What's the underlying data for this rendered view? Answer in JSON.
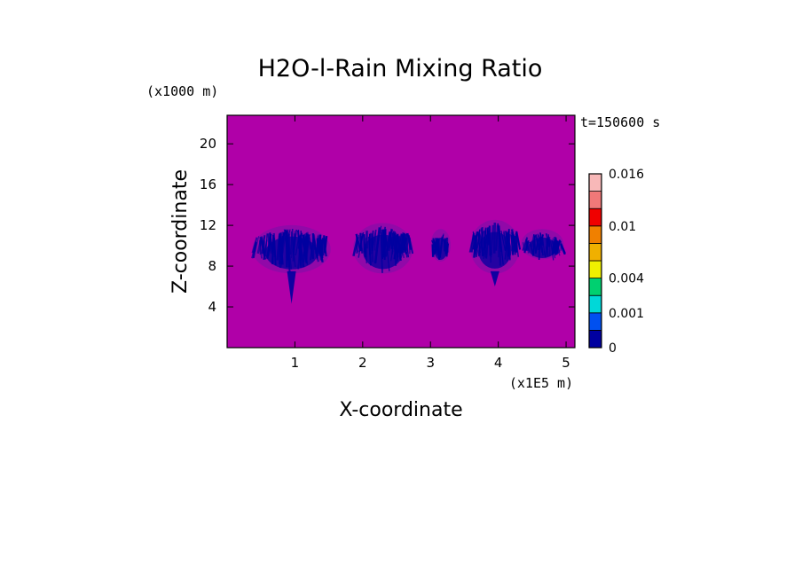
{
  "chart_data": {
    "type": "heatmap",
    "title": "H2O-l-Rain Mixing Ratio",
    "xlabel": "X-coordinate",
    "ylabel": "Z-coordinate",
    "x_unit": "(x1E5 m)",
    "y_unit": "(x1000 m)",
    "time_label": "t=150600 s",
    "xlim": [
      0,
      5.13
    ],
    "ylim": [
      0,
      22.8
    ],
    "x_ticks": [
      {
        "value": 1,
        "label": "1"
      },
      {
        "value": 2,
        "label": "2"
      },
      {
        "value": 3,
        "label": "3"
      },
      {
        "value": 4,
        "label": "4"
      },
      {
        "value": 5,
        "label": "5"
      }
    ],
    "y_ticks": [
      {
        "value": 4,
        "label": "4"
      },
      {
        "value": 8,
        "label": "8"
      },
      {
        "value": 12,
        "label": "12"
      },
      {
        "value": 16,
        "label": "16"
      },
      {
        "value": 20,
        "label": "20"
      }
    ],
    "background_color": "#b000a8",
    "colorbar": {
      "levels": [
        0,
        0.0005,
        0.001,
        0.0015,
        0.004,
        0.006,
        0.008,
        0.01,
        0.012,
        0.014,
        0.016
      ],
      "colors": [
        "#0000a0",
        "#0050f0",
        "#00d8d8",
        "#00d070",
        "#f0f000",
        "#f0b000",
        "#f08000",
        "#f00000",
        "#f07878",
        "#f8b8b8"
      ],
      "tick_labels": [
        {
          "value": 0,
          "label": "0"
        },
        {
          "value": 0.001,
          "label": "0.001"
        },
        {
          "value": 0.004,
          "label": "0.004"
        },
        {
          "value": 0.01,
          "label": "0.01"
        },
        {
          "value": 0.016,
          "label": "0.016"
        }
      ]
    },
    "rain_regions": [
      {
        "x_center": 0.95,
        "x_halfwidth": 0.55,
        "z_bottom": 7.5,
        "z_top": 11.8,
        "shaft_bottom": 4.3
      },
      {
        "x_center": 2.3,
        "x_halfwidth": 0.42,
        "z_bottom": 7.5,
        "z_top": 12.0,
        "shaft_bottom": 7.5
      },
      {
        "x_center": 3.15,
        "x_halfwidth": 0.14,
        "z_bottom": 8.6,
        "z_top": 11.5,
        "shaft_bottom": 8.6
      },
      {
        "x_center": 3.95,
        "x_halfwidth": 0.35,
        "z_bottom": 7.5,
        "z_top": 12.3,
        "shaft_bottom": 6.0
      },
      {
        "x_center": 4.65,
        "x_halfwidth": 0.3,
        "z_bottom": 8.8,
        "z_top": 11.5,
        "shaft_bottom": 8.8
      }
    ]
  }
}
